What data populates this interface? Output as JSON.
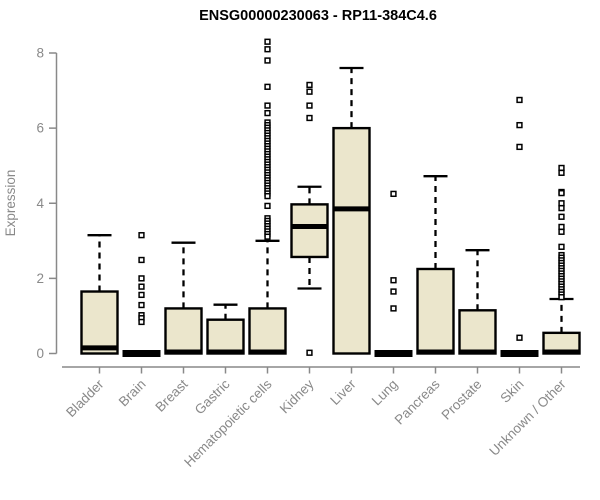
{
  "chart_data": {
    "type": "boxplot",
    "title": "ENSG00000230063 - RP11-384C4.6",
    "ylabel": "Expression",
    "xlabel": "",
    "ylim": [
      0,
      8
    ],
    "yticks": [
      0,
      2,
      4,
      6,
      8
    ],
    "grid": false,
    "legend": "none",
    "categories": [
      "Bladder",
      "Brain",
      "Breast",
      "Gastric",
      "Hematopoietic cells",
      "Kidney",
      "Liver",
      "Lung",
      "Pancreas",
      "Prostate",
      "Skin",
      "Unknown / Other"
    ],
    "series": [
      {
        "category": "Bladder",
        "q1": 0,
        "median": 0.15,
        "q3": 1.65,
        "whisker_low": 0,
        "whisker_high": 3.15,
        "outliers": []
      },
      {
        "category": "Brain",
        "q1": 0,
        "median": 0,
        "q3": 0,
        "whisker_low": 0,
        "whisker_high": 0,
        "outliers": [
          3.15,
          2.49,
          2.0,
          1.78,
          1.56,
          1.29,
          1.02,
          0.94,
          0.84
        ]
      },
      {
        "category": "Breast",
        "q1": 0,
        "median": 0.04,
        "q3": 1.2,
        "whisker_low": 0,
        "whisker_high": 2.95,
        "outliers": []
      },
      {
        "category": "Gastric",
        "q1": 0,
        "median": 0.04,
        "q3": 0.9,
        "whisker_low": 0,
        "whisker_high": 1.3,
        "outliers": []
      },
      {
        "category": "Hematopoietic cells",
        "q1": 0,
        "median": 0.04,
        "q3": 1.2,
        "whisker_low": 0,
        "whisker_high": 3.0,
        "outliers": [
          8.3,
          8.1,
          7.8,
          7.1,
          6.6,
          6.4,
          6.15,
          6.08,
          6.01,
          5.94,
          5.87,
          5.8,
          5.73,
          5.66,
          5.59,
          5.52,
          5.45,
          5.38,
          5.31,
          5.24,
          5.17,
          5.1,
          5.03,
          4.96,
          4.89,
          4.82,
          4.75,
          4.68,
          4.61,
          4.54,
          4.47,
          4.4,
          4.33,
          4.26,
          4.19,
          3.93,
          3.6,
          3.53,
          3.46,
          3.39,
          3.32,
          3.25,
          3.18,
          3.11
        ]
      },
      {
        "category": "Kidney",
        "q1": 2.57,
        "median": 3.38,
        "q3": 3.97,
        "whisker_low": 1.73,
        "whisker_high": 4.44,
        "outliers": [
          7.15,
          6.97,
          6.6,
          6.27,
          0.02
        ]
      },
      {
        "category": "Liver",
        "q1": 0,
        "median": 3.85,
        "q3": 6.0,
        "whisker_low": 0,
        "whisker_high": 7.6,
        "outliers": []
      },
      {
        "category": "Lung",
        "q1": 0,
        "median": 0,
        "q3": 0,
        "whisker_low": 0,
        "whisker_high": 0,
        "outliers": [
          4.25,
          1.95,
          1.65,
          1.2
        ]
      },
      {
        "category": "Pancreas",
        "q1": 0,
        "median": 0.04,
        "q3": 2.25,
        "whisker_low": 0,
        "whisker_high": 4.72,
        "outliers": []
      },
      {
        "category": "Prostate",
        "q1": 0,
        "median": 0.04,
        "q3": 1.15,
        "whisker_low": 0,
        "whisker_high": 2.75,
        "outliers": []
      },
      {
        "category": "Skin",
        "q1": 0,
        "median": 0,
        "q3": 0,
        "whisker_low": 0,
        "whisker_high": 0,
        "outliers": [
          6.75,
          6.08,
          5.5,
          0.42
        ]
      },
      {
        "category": "Unknown / Other",
        "q1": 0,
        "median": 0.04,
        "q3": 0.55,
        "whisker_low": 0,
        "whisker_high": 1.45,
        "outliers": [
          4.94,
          4.81,
          4.3,
          4.27,
          4.0,
          3.87,
          3.64,
          3.37,
          3.24,
          2.84,
          2.62,
          2.55,
          2.48,
          2.41,
          2.34,
          2.27,
          2.2,
          2.13,
          2.06,
          1.99,
          1.92,
          1.85,
          1.78,
          1.71,
          1.64,
          1.57,
          1.5
        ]
      }
    ],
    "colors": {
      "background": "#FFFFFF",
      "box_fill": "#EBE6CC",
      "box_border": "#000000",
      "median": "#000000",
      "whisker": "#000000",
      "outlier_stroke": "#000000",
      "outlier_fill": "#FFFFFF",
      "axis": "#898989",
      "tick_text": "#898989",
      "title_text": "#000000"
    }
  }
}
